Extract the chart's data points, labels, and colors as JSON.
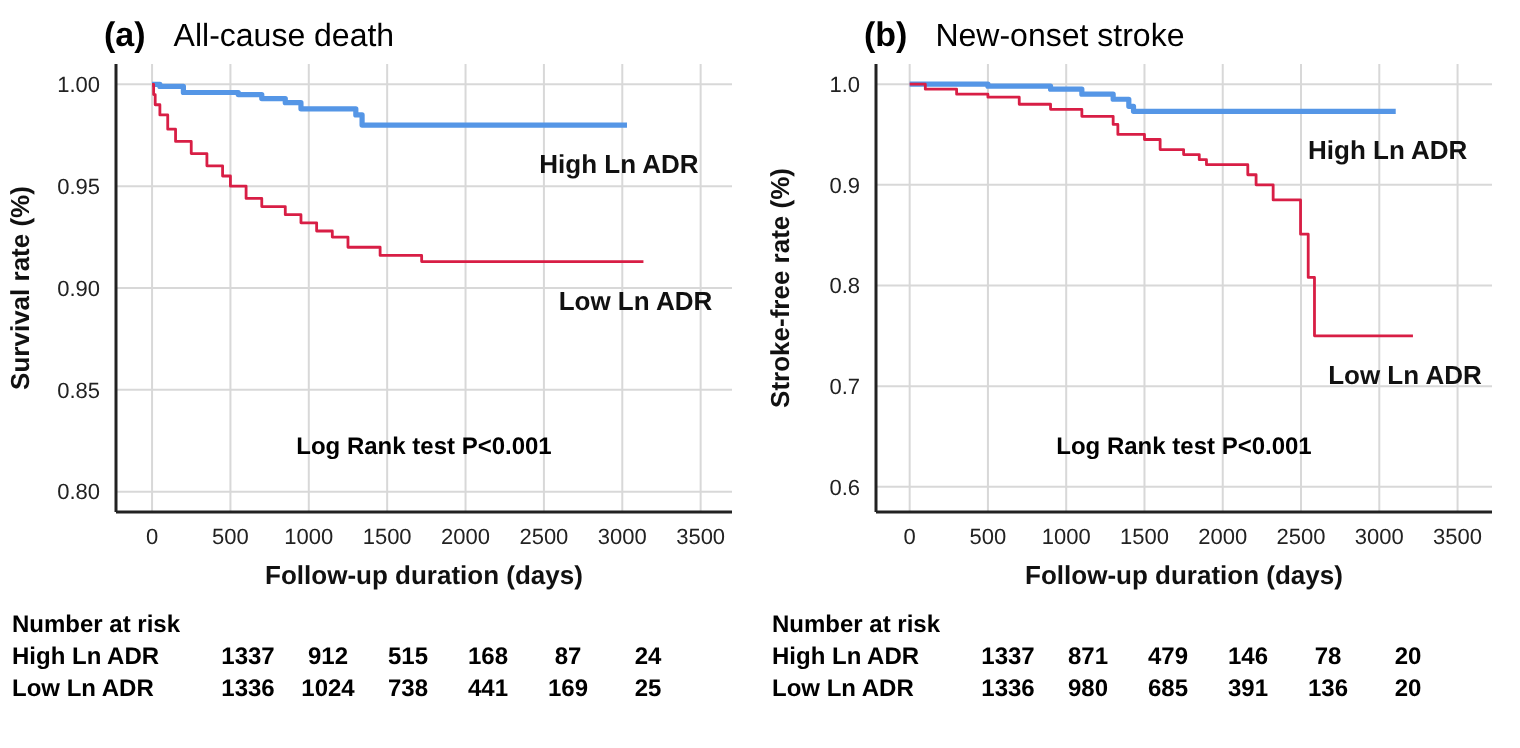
{
  "chart_data": [
    {
      "type": "step",
      "title": "(a)",
      "subtitle": "All-cause death",
      "xlabel": "Follow-up duration (days)",
      "ylabel": "Survival rate (%)",
      "xlim": [
        -230,
        3700
      ],
      "xticks": [
        0,
        500,
        1000,
        1500,
        2000,
        2500,
        3000,
        3500
      ],
      "ylim": [
        0.79,
        1.01
      ],
      "yticks": [
        {
          "value": 0.8,
          "label": "0.80"
        },
        {
          "value": 0.85,
          "label": "0.85"
        },
        {
          "value": 0.9,
          "label": "0.90"
        },
        {
          "value": 0.95,
          "label": "0.95"
        },
        {
          "value": 1,
          "label": "1.00"
        }
      ],
      "grid": true,
      "marker": "none",
      "line_style": "solid",
      "series": [
        {
          "name": "High Ln ADR",
          "color": "#5596e6",
          "x": [
            0,
            50,
            200,
            550,
            700,
            850,
            950,
            1300,
            1340,
            3030
          ],
          "values": [
            1,
            0.999,
            0.996,
            0.995,
            0.993,
            0.991,
            0.988,
            0.985,
            0.98,
            0.98
          ]
        },
        {
          "name": "Low Ln ADR",
          "color": "#d81e45",
          "x": [
            0,
            10,
            20,
            50,
            100,
            150,
            250,
            350,
            450,
            500,
            600,
            700,
            850,
            950,
            1050,
            1150,
            1250,
            1455,
            1720,
            3135
          ],
          "values": [
            1,
            0.995,
            0.99,
            0.985,
            0.978,
            0.972,
            0.966,
            0.96,
            0.955,
            0.95,
            0.944,
            0.94,
            0.936,
            0.932,
            0.928,
            0.925,
            0.92,
            0.916,
            0.913,
            0.913
          ]
        }
      ],
      "annotations": [
        "Log Rank test P<0.001",
        "Number at risk",
        "High Ln ADR",
        "1337",
        "912",
        "515",
        "168",
        "87",
        "24",
        "Low Ln ADR",
        "1336",
        "1024",
        "738",
        "441",
        "169",
        "25"
      ]
    },
    {
      "type": "step",
      "title": "(b)",
      "subtitle": "New-onset stroke",
      "xlabel": "Follow-up duration (days)",
      "ylabel": "Stroke-free rate (%)",
      "xlim": [
        -215,
        3720
      ],
      "xticks": [
        0,
        500,
        1000,
        1500,
        2000,
        2500,
        3000,
        3500
      ],
      "ylim": [
        0.575,
        1.02
      ],
      "yticks": [
        0.6,
        0.7,
        0.8,
        0.9,
        {
          "value": 1,
          "label": "1.0"
        }
      ],
      "grid": true,
      "marker": "none",
      "line_style": "solid",
      "series": [
        {
          "name": "High Ln ADR",
          "color": "#5596e6",
          "x": [
            0,
            500,
            900,
            1100,
            1300,
            1400,
            1430,
            3105
          ],
          "values": [
            1,
            0.998,
            0.995,
            0.99,
            0.985,
            0.978,
            0.973,
            0.973
          ]
        },
        {
          "name": "Low Ln ADR",
          "color": "#d81e45",
          "x": [
            0,
            100,
            300,
            500,
            700,
            900,
            1100,
            1300,
            1330,
            1500,
            1600,
            1750,
            1850,
            1896,
            2160,
            2213,
            2322,
            2497,
            2546,
            2586,
            3215
          ],
          "values": [
            1,
            0.995,
            0.99,
            0.987,
            0.98,
            0.975,
            0.968,
            0.96,
            0.95,
            0.945,
            0.935,
            0.93,
            0.925,
            0.92,
            0.91,
            0.9,
            0.885,
            0.851,
            0.808,
            0.75,
            0.75
          ]
        }
      ],
      "annotations": [
        "Log Rank test P<0.001",
        "Number at risk",
        "High Ln ADR",
        "1337",
        "871",
        "479",
        "146",
        "78",
        "20",
        "Low Ln ADR",
        "1336",
        "980",
        "685",
        "391",
        "136",
        "20"
      ]
    }
  ]
}
